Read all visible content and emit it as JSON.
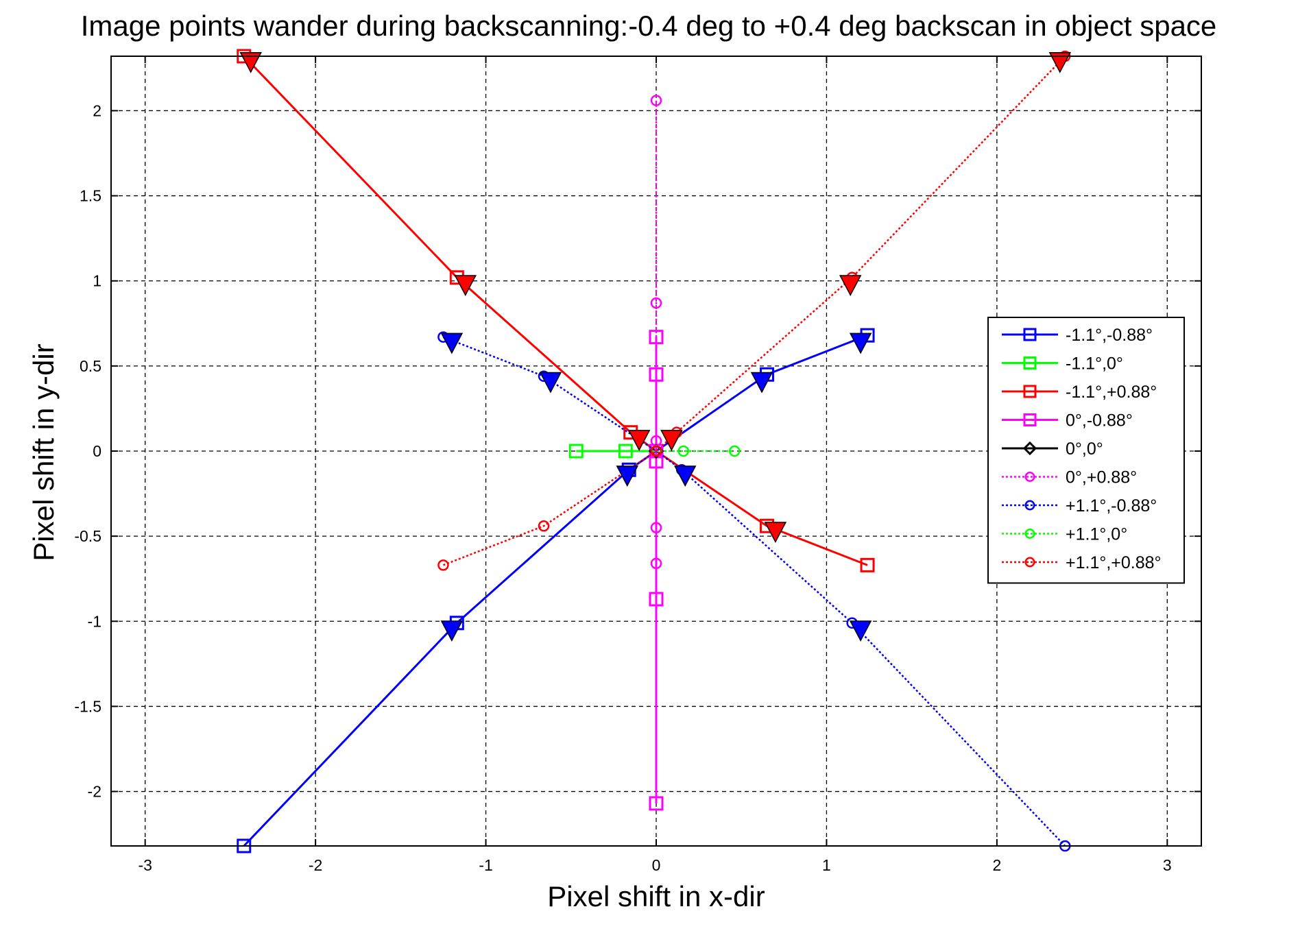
{
  "chart_data": {
    "type": "line",
    "title": "Image points wander during backscanning:-0.4 deg to +0.4 deg backscan in object space",
    "xlabel": "Pixel shift in x-dir",
    "ylabel": "Pixel shift in y-dir",
    "xlim": [
      -3.2,
      3.2
    ],
    "ylim": [
      -2.32,
      2.32
    ],
    "xticks": [
      -3,
      -2,
      -1,
      0,
      1,
      2,
      3
    ],
    "xtick_labels": [
      "-3",
      "-2",
      "-1",
      "0",
      "1",
      "2",
      "3"
    ],
    "yticks": [
      -2,
      -1.5,
      -1,
      -0.5,
      0,
      0.5,
      1,
      1.5,
      2
    ],
    "ytick_labels": [
      "-2",
      "-1.5",
      "-1",
      "-0.5",
      "0",
      "0.5",
      "1",
      "1.5",
      "2"
    ],
    "grid": true,
    "legend_position": "right",
    "series": [
      {
        "name": "-1.1°,-0.88°",
        "color": "#0000ff",
        "style": "solid",
        "marker": "square",
        "x": [
          -2.42,
          -1.17,
          -0.16,
          0,
          0.65,
          1.24
        ],
        "y": [
          -2.32,
          -1.01,
          -0.11,
          0,
          0.45,
          0.68
        ]
      },
      {
        "name": "-1.1°,0°",
        "color": "#00ff00",
        "style": "solid",
        "marker": "square",
        "x": [
          -0.47,
          -0.18,
          0
        ],
        "y": [
          0,
          0,
          0
        ]
      },
      {
        "name": "-1.1°,+0.88°",
        "color": "#ff0000",
        "style": "solid",
        "marker": "square",
        "x": [
          -2.42,
          -1.17,
          -0.15,
          0,
          0.65,
          1.24
        ],
        "y": [
          2.32,
          1.02,
          0.11,
          0,
          -0.44,
          -0.67
        ]
      },
      {
        "name": "0°,-0.88°",
        "color": "#ff00ff",
        "style": "solid",
        "marker": "square",
        "x": [
          0,
          0,
          0,
          0,
          0,
          0
        ],
        "y": [
          -2.07,
          -0.87,
          -0.06,
          0,
          0.45,
          0.67
        ]
      },
      {
        "name": "0°,0°",
        "color": "#000000",
        "style": "solid",
        "marker": "diamond",
        "x": [
          0
        ],
        "y": [
          0
        ]
      },
      {
        "name": "0°,+0.88°",
        "color": "#ff00ff",
        "style": "dotted",
        "marker": "circle",
        "x": [
          0,
          0,
          0,
          0,
          0,
          0
        ],
        "y": [
          -0.66,
          -0.45,
          0,
          0.06,
          0.87,
          2.06
        ]
      },
      {
        "name": "+1.1°,-0.88°",
        "color": "#0000ff",
        "style": "dotted",
        "marker": "circle",
        "x": [
          -1.25,
          -0.66,
          0,
          0.15,
          1.15,
          2.4
        ],
        "y": [
          0.67,
          0.44,
          0,
          -0.11,
          -1.01,
          -2.32
        ]
      },
      {
        "name": "+1.1°,0°",
        "color": "#00ff00",
        "style": "dotted",
        "marker": "circle",
        "x": [
          0,
          0.16,
          0.46
        ],
        "y": [
          0,
          0,
          0
        ]
      },
      {
        "name": "+1.1°,+0.88°",
        "color": "#ff0000",
        "style": "dotted",
        "marker": "circle",
        "x": [
          -1.25,
          -0.66,
          0,
          0.12,
          1.15,
          2.4
        ],
        "y": [
          -0.67,
          -0.44,
          0,
          0.11,
          1.02,
          2.32
        ]
      }
    ],
    "triangle_markers": [
      {
        "color": "#ff0000",
        "points": [
          [
            -2.38,
            2.29
          ],
          [
            -1.12,
            0.98
          ],
          [
            -0.1,
            0.07
          ],
          [
            0.09,
            0.07
          ],
          [
            0.7,
            -0.47
          ],
          [
            1.14,
            0.98
          ],
          [
            2.37,
            2.29
          ]
        ]
      },
      {
        "color": "#0000ff",
        "points": [
          [
            -1.2,
            0.64
          ],
          [
            -0.62,
            0.41
          ],
          [
            0.62,
            0.41
          ],
          [
            1.2,
            0.64
          ],
          [
            -0.17,
            -0.14
          ],
          [
            0.17,
            -0.14
          ],
          [
            -1.2,
            -1.05
          ],
          [
            1.2,
            -1.05
          ]
        ]
      }
    ]
  }
}
